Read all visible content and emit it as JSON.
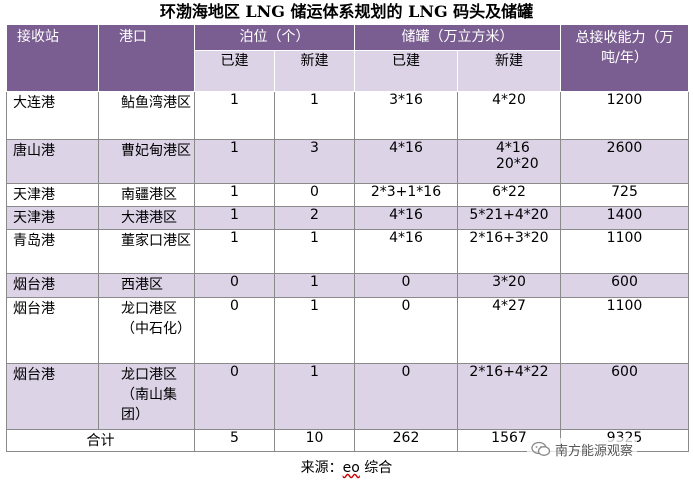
{
  "title": "环渤海地区 LNG 储运体系规划的 LNG 码头及储罐",
  "headers": {
    "station": "接收站",
    "port": "港口",
    "berth": "泊位（个）",
    "tank": "储罐（万立方米）",
    "capacity": "总接收能力（万吨/年）",
    "existing": "已建",
    "new": "新建"
  },
  "rows": [
    {
      "station": "大连港",
      "port": "鲇鱼湾港区",
      "berth_built": "1",
      "berth_new": "1",
      "tank_built": "3*16",
      "tank_new": "4*20",
      "capacity": "1200"
    },
    {
      "station": "唐山港",
      "port": "曹妃甸港区",
      "berth_built": "1",
      "berth_new": "3",
      "tank_built": "4*16",
      "tank_new": "4*16 20*20",
      "capacity": "2600"
    },
    {
      "station": "天津港",
      "port": "南疆港区",
      "berth_built": "1",
      "berth_new": "0",
      "tank_built": "2*3+1*16",
      "tank_new": "6*22",
      "capacity": "725"
    },
    {
      "station": "天津港",
      "port": "大港港区",
      "berth_built": "1",
      "berth_new": "2",
      "tank_built": "4*16",
      "tank_new": "5*21+4*20",
      "capacity": "1400"
    },
    {
      "station": "青岛港",
      "port": "董家口港区",
      "berth_built": "1",
      "berth_new": "1",
      "tank_built": "4*16",
      "tank_new": "2*16+3*20",
      "capacity": "1100"
    },
    {
      "station": "烟台港",
      "port": "西港区",
      "berth_built": "0",
      "berth_new": "1",
      "tank_built": "0",
      "tank_new": "3*20",
      "capacity": "600"
    },
    {
      "station": "烟台港",
      "port": "龙口港区（中石化）",
      "berth_built": "0",
      "berth_new": "1",
      "tank_built": "0",
      "tank_new": "4*27",
      "capacity": "1100"
    },
    {
      "station": "烟台港",
      "port": "龙口港区（南山集团）",
      "berth_built": "0",
      "berth_new": "1",
      "tank_built": "0",
      "tank_new": "2*16+4*22",
      "capacity": "600"
    }
  ],
  "total": {
    "label": "合计",
    "berth_built": "5",
    "berth_new": "10",
    "tank_built": "262",
    "tank_new": "1567",
    "capacity": "9325"
  },
  "source": {
    "prefix": "来源：",
    "name": "eo",
    "suffix": " 综合"
  },
  "watermark": "南方能源观察",
  "colors": {
    "header": "#7a5d91",
    "alt_row": "#dcd3e7"
  }
}
